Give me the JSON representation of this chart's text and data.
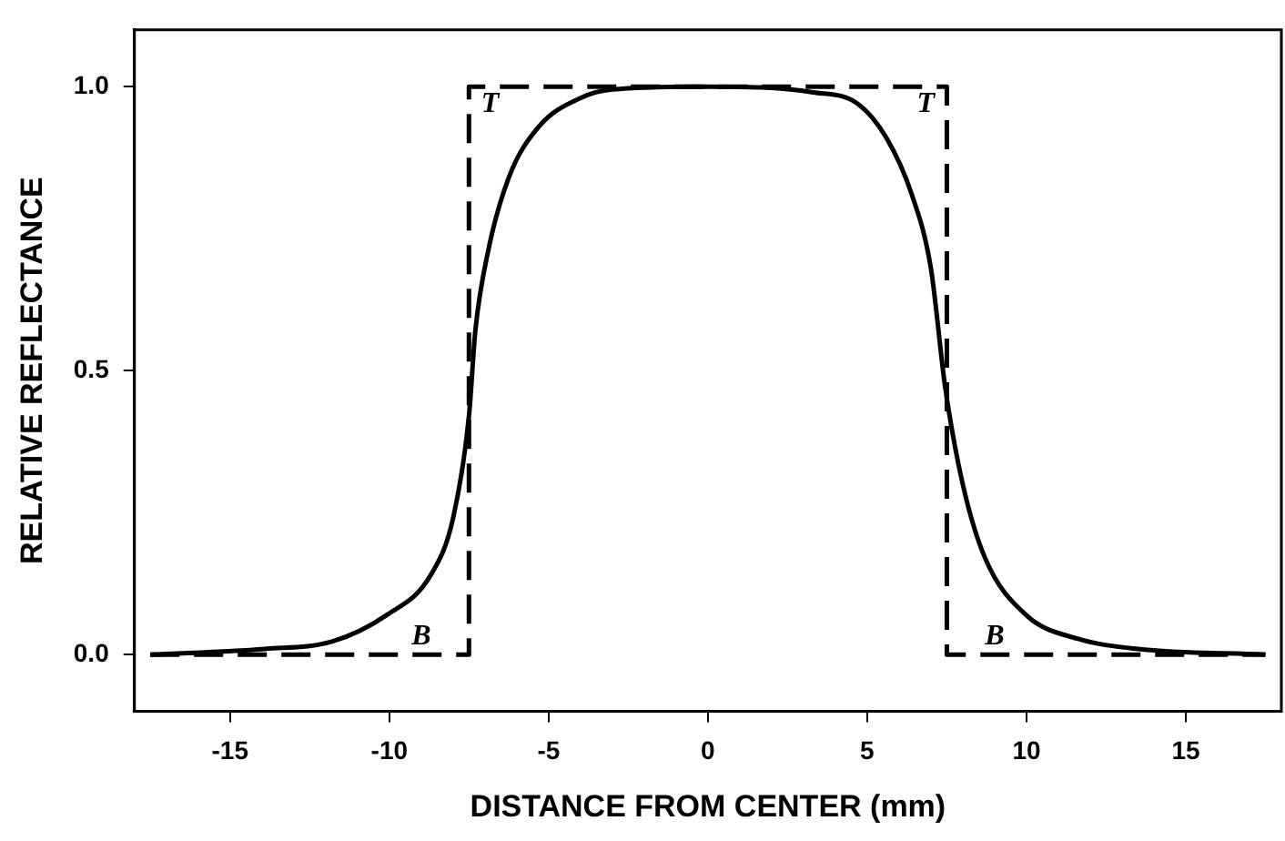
{
  "chart_data": {
    "type": "line",
    "xlabel": "DISTANCE FROM CENTER (mm)",
    "ylabel": "RELATIVE REFLECTANCE",
    "xlim": [
      -18,
      18
    ],
    "xticks": [
      -15,
      -10,
      -5,
      0,
      5,
      10,
      15
    ],
    "ylim": [
      -0.1,
      1.1
    ],
    "yticks": [
      {
        "value": 0,
        "label": "0.0"
      },
      {
        "value": 0.5,
        "label": "0.5"
      },
      {
        "value": 1,
        "label": "1.0"
      }
    ],
    "grid": false,
    "legend": false,
    "marker": "none",
    "series": [
      {
        "color": "#000000",
        "line_style": "solid",
        "x": [
          -17.5,
          -13.9,
          -11.8,
          -10.1,
          -8.7,
          -8,
          -7.5,
          -7.3,
          -6.9,
          -6.25,
          -5.3,
          -4,
          -3,
          0,
          3.3,
          4.7,
          5.6,
          6.4,
          7,
          7.45,
          8,
          8.7,
          10,
          11.6,
          13.5,
          17.5
        ],
        "values": [
          0,
          0.01,
          0.023,
          0.069,
          0.14,
          0.24,
          0.42,
          0.57,
          0.71,
          0.84,
          0.93,
          0.98,
          0.995,
          1,
          0.99,
          0.97,
          0.91,
          0.81,
          0.68,
          0.47,
          0.3,
          0.17,
          0.069,
          0.028,
          0.01,
          0
        ]
      },
      {
        "color": "#000000",
        "line_style": "dashed",
        "x": [
          -17.5,
          -7.5,
          -7.5,
          7.5,
          7.5,
          17.5
        ],
        "values": [
          0,
          0,
          1,
          1,
          0,
          0
        ]
      }
    ],
    "annotations": [
      "T",
      "B",
      "T",
      "B"
    ]
  }
}
